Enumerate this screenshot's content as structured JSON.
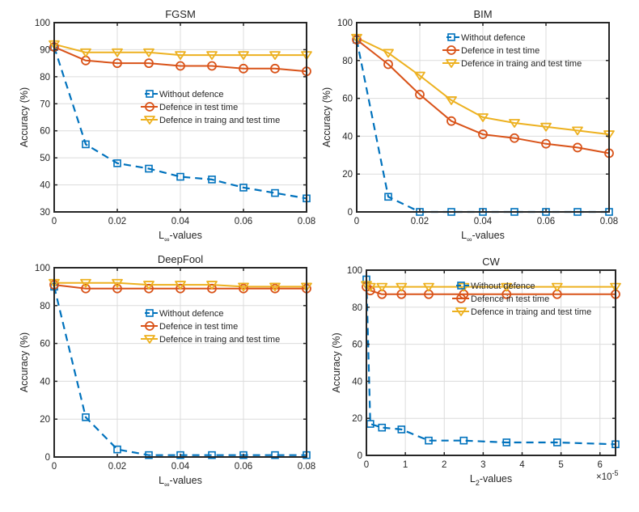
{
  "colors": {
    "without": "#0072BD",
    "test": "#D95319",
    "train_test": "#EDB120",
    "axis": "#262626",
    "grid": "#dcdcdc"
  },
  "chart_data": [
    {
      "id": "fgsm",
      "type": "line",
      "title": "FGSM",
      "xlabel": "L",
      "xlabel_sub": "∞",
      "xlabel_rest": "-values",
      "ylabel": "Accuracy (%)",
      "xlim": [
        0,
        0.08
      ],
      "ylim": [
        30,
        100
      ],
      "xticks": [
        0,
        0.02,
        0.04,
        0.06,
        0.08
      ],
      "xtick_labels": [
        "0",
        "0.02",
        "0.04",
        "0.06",
        "0.08"
      ],
      "yticks": [
        30,
        40,
        50,
        60,
        70,
        80,
        90,
        100
      ],
      "ytick_labels": [
        "30",
        "40",
        "50",
        "60",
        "70",
        "80",
        "90",
        "100"
      ],
      "xgrid": [
        0.02,
        0.04,
        0.06
      ],
      "grid": true,
      "legend_position": "center-right",
      "x": [
        0,
        0.01,
        0.02,
        0.03,
        0.04,
        0.05,
        0.06,
        0.07,
        0.08
      ],
      "series": [
        {
          "name": "Without defence",
          "key": "without",
          "marker": "square",
          "dash": true,
          "values": [
            91,
            55,
            48,
            46,
            43,
            42,
            39,
            37,
            35
          ]
        },
        {
          "name": "Defence in test time",
          "key": "test",
          "marker": "circle",
          "dash": false,
          "values": [
            91,
            86,
            85,
            85,
            84,
            84,
            83,
            83,
            82
          ]
        },
        {
          "name": "Defence in traing and test time",
          "key": "train_test",
          "marker": "triangle-down",
          "dash": false,
          "values": [
            92,
            89,
            89,
            89,
            88,
            88,
            88,
            88,
            88
          ]
        }
      ]
    },
    {
      "id": "bim",
      "type": "line",
      "title": "BIM",
      "xlabel": "L",
      "xlabel_sub": "∞",
      "xlabel_rest": "-values",
      "ylabel": "Accuracy (%)",
      "xlim": [
        0,
        0.08
      ],
      "ylim": [
        0,
        100
      ],
      "xticks": [
        0,
        0.02,
        0.04,
        0.06,
        0.08
      ],
      "xtick_labels": [
        "0",
        "0.02",
        "0.04",
        "0.06",
        "0.08"
      ],
      "yticks": [
        0,
        20,
        40,
        60,
        80,
        100
      ],
      "ytick_labels": [
        "0",
        "20",
        "40",
        "60",
        "80",
        "100"
      ],
      "xgrid": [
        0.02,
        0.04,
        0.06
      ],
      "grid": true,
      "legend_position": "top-right",
      "x": [
        0,
        0.01,
        0.02,
        0.03,
        0.04,
        0.05,
        0.06,
        0.07,
        0.08
      ],
      "series": [
        {
          "name": "Without defence",
          "key": "without",
          "marker": "square",
          "dash": true,
          "values": [
            91,
            8,
            0,
            0,
            0,
            0,
            0,
            0,
            0
          ]
        },
        {
          "name": "Defence in test time",
          "key": "test",
          "marker": "circle",
          "dash": false,
          "values": [
            91,
            78,
            62,
            48,
            41,
            39,
            36,
            34,
            31
          ]
        },
        {
          "name": "Defence in traing and test time",
          "key": "train_test",
          "marker": "triangle-down",
          "dash": false,
          "values": [
            92,
            84,
            72,
            59,
            50,
            47,
            45,
            43,
            41
          ]
        }
      ]
    },
    {
      "id": "deepfool",
      "type": "line",
      "title": "DeepFool",
      "xlabel": "L",
      "xlabel_sub": "∞",
      "xlabel_rest": "-values",
      "ylabel": "Accuracy (%)",
      "xlim": [
        0,
        0.08
      ],
      "ylim": [
        0,
        100
      ],
      "xticks": [
        0,
        0.02,
        0.04,
        0.06,
        0.08
      ],
      "xtick_labels": [
        "0",
        "0.02",
        "0.04",
        "0.06",
        "0.08"
      ],
      "yticks": [
        0,
        20,
        40,
        60,
        80,
        100
      ],
      "ytick_labels": [
        "0",
        "20",
        "40",
        "60",
        "80",
        "100"
      ],
      "xgrid": [
        0.02,
        0.04,
        0.06
      ],
      "grid": true,
      "legend_position": "upper-right",
      "x": [
        0,
        0.01,
        0.02,
        0.03,
        0.04,
        0.05,
        0.06,
        0.07,
        0.08
      ],
      "series": [
        {
          "name": "Without defence",
          "key": "without",
          "marker": "square",
          "dash": true,
          "values": [
            90,
            21,
            4,
            1,
            1,
            1,
            1,
            1,
            1
          ]
        },
        {
          "name": "Defence in test time",
          "key": "test",
          "marker": "circle",
          "dash": false,
          "values": [
            91,
            89,
            89,
            89,
            89,
            89,
            89,
            89,
            89
          ]
        },
        {
          "name": "Defence in traing and test time",
          "key": "train_test",
          "marker": "triangle-down",
          "dash": false,
          "values": [
            92,
            92,
            92,
            91,
            91,
            91,
            90,
            90,
            90
          ]
        }
      ]
    },
    {
      "id": "cw",
      "type": "line",
      "title": "CW",
      "xlabel": "L",
      "xlabel_sub": "2",
      "xlabel_rest": "-values",
      "x_multiplier": "×10",
      "x_multiplier_exp": "-5",
      "ylabel": "Accuracy (%)",
      "xlim": [
        0,
        6.4
      ],
      "ylim": [
        0,
        100
      ],
      "xticks": [
        0,
        1,
        2,
        3,
        4,
        5,
        6
      ],
      "xtick_labels": [
        "0",
        "1",
        "2",
        "3",
        "4",
        "5",
        "6"
      ],
      "yticks": [
        0,
        20,
        40,
        60,
        80,
        100
      ],
      "ytick_labels": [
        "0",
        "20",
        "40",
        "60",
        "80",
        "100"
      ],
      "xgrid": [
        1,
        2,
        3,
        4,
        5,
        6
      ],
      "grid": true,
      "legend_position": "top-right",
      "x": [
        0,
        0.1,
        0.4,
        0.9,
        1.6,
        2.5,
        3.6,
        4.9,
        6.4
      ],
      "series": [
        {
          "name": "Without defence",
          "key": "without",
          "marker": "square",
          "dash": true,
          "values": [
            95,
            17,
            15,
            14,
            8,
            8,
            7,
            7,
            6
          ]
        },
        {
          "name": "Defence in test time",
          "key": "test",
          "marker": "circle",
          "dash": false,
          "values": [
            91,
            89,
            87,
            87,
            87,
            87,
            87,
            87,
            87
          ]
        },
        {
          "name": "Defence in traing and test time",
          "key": "train_test",
          "marker": "triangle-down",
          "dash": false,
          "values": [
            92,
            91,
            91,
            91,
            91,
            91,
            91,
            91,
            91
          ]
        }
      ]
    }
  ]
}
